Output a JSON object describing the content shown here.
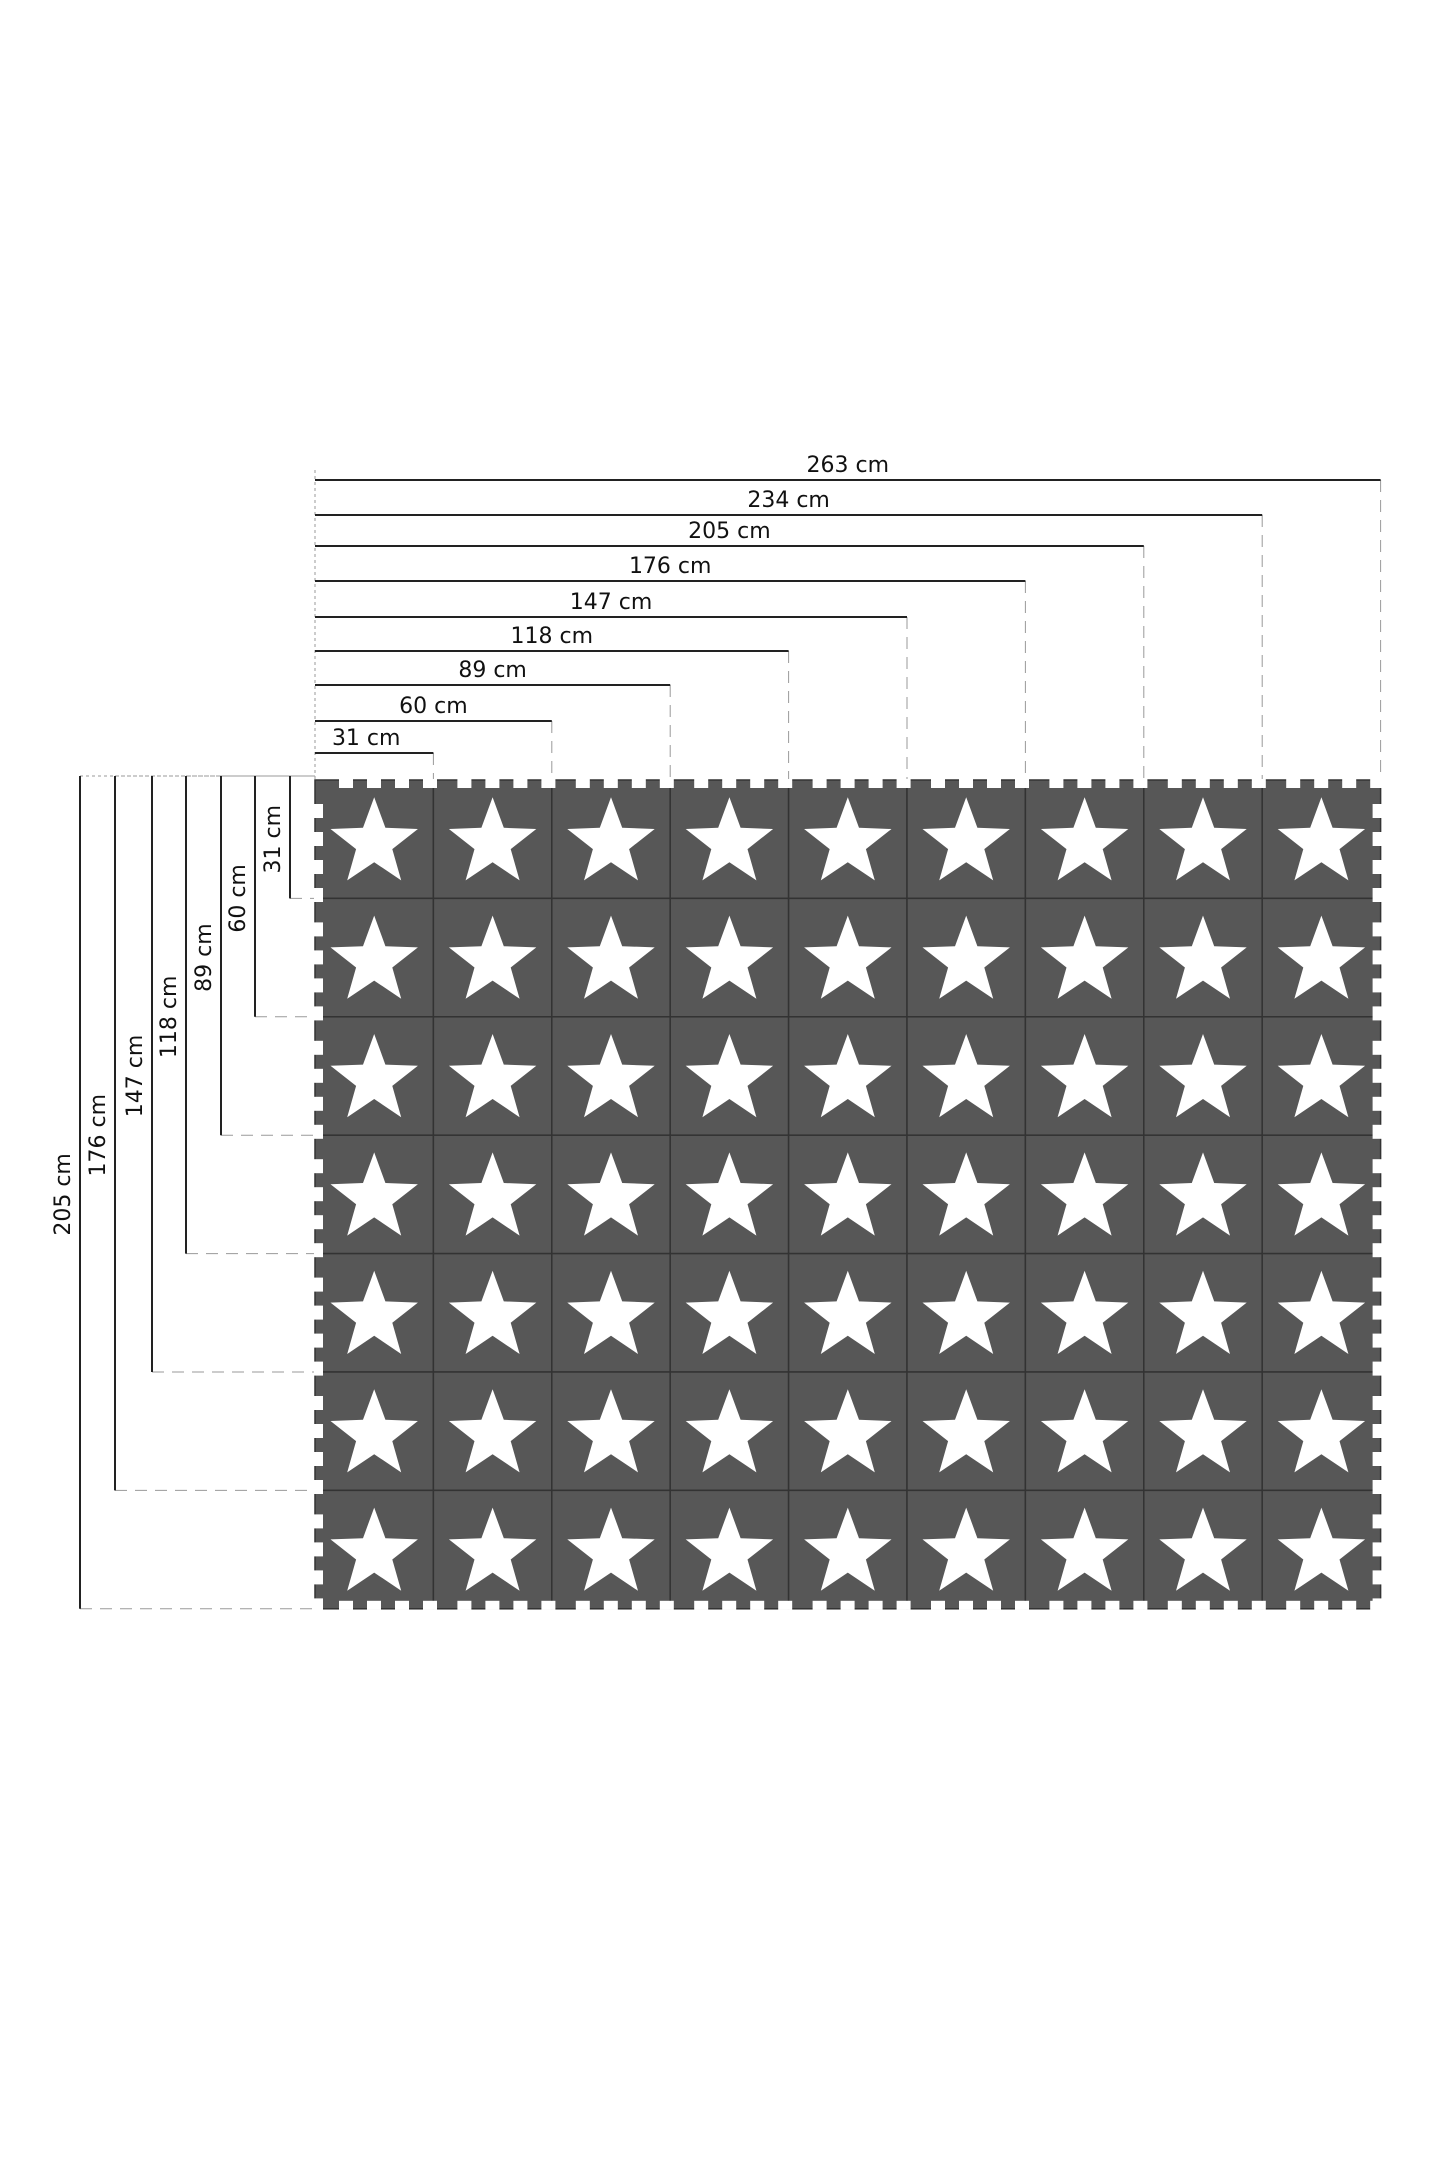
{
  "colors": {
    "tile": "#575757",
    "tile_seam": "#333333",
    "star": "#ffffff",
    "dim_line": "#222222",
    "guide": "#9a9a9a"
  },
  "mat": {
    "columns": 9,
    "rows": 7,
    "tile_icon": "star-icon"
  },
  "width_dimensions": [
    "31 cm",
    "60 cm",
    "89 cm",
    "118 cm",
    "147 cm",
    "176 cm",
    "205 cm",
    "234 cm",
    "263 cm"
  ],
  "height_dimensions": [
    "31 cm",
    "60 cm",
    "89 cm",
    "118 cm",
    "147 cm",
    "176 cm",
    "205 cm"
  ]
}
